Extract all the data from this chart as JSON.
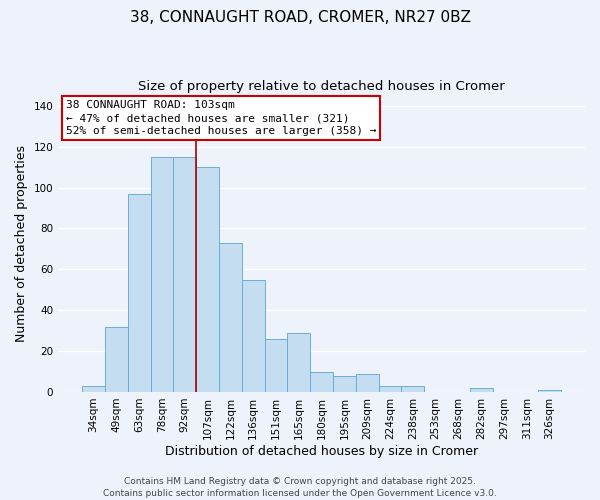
{
  "title": "38, CONNAUGHT ROAD, CROMER, NR27 0BZ",
  "subtitle": "Size of property relative to detached houses in Cromer",
  "xlabel": "Distribution of detached houses by size in Cromer",
  "ylabel": "Number of detached properties",
  "bar_labels": [
    "34sqm",
    "49sqm",
    "63sqm",
    "78sqm",
    "92sqm",
    "107sqm",
    "122sqm",
    "136sqm",
    "151sqm",
    "165sqm",
    "180sqm",
    "195sqm",
    "209sqm",
    "224sqm",
    "238sqm",
    "253sqm",
    "268sqm",
    "282sqm",
    "297sqm",
    "311sqm",
    "326sqm"
  ],
  "bar_values": [
    3,
    32,
    97,
    115,
    115,
    110,
    73,
    55,
    26,
    29,
    10,
    8,
    9,
    3,
    3,
    0,
    0,
    2,
    0,
    0,
    1
  ],
  "bar_color": "#c5ddf0",
  "bar_edge_color": "#6aaed6",
  "vline_x_idx": 5,
  "vline_color": "#aa0000",
  "ylim": [
    0,
    145
  ],
  "yticks": [
    0,
    20,
    40,
    60,
    80,
    100,
    120,
    140
  ],
  "annotation_title": "38 CONNAUGHT ROAD: 103sqm",
  "annotation_line1": "← 47% of detached houses are smaller (321)",
  "annotation_line2": "52% of semi-detached houses are larger (358) →",
  "annotation_box_color": "#ffffff",
  "annotation_box_edge": "#cc0000",
  "footer_line1": "Contains HM Land Registry data © Crown copyright and database right 2025.",
  "footer_line2": "Contains public sector information licensed under the Open Government Licence v3.0.",
  "background_color": "#eef2fb",
  "grid_color": "#ffffff",
  "title_fontsize": 11,
  "subtitle_fontsize": 9.5,
  "axis_label_fontsize": 9,
  "tick_fontsize": 7.5,
  "annotation_fontsize": 8,
  "footer_fontsize": 6.5
}
